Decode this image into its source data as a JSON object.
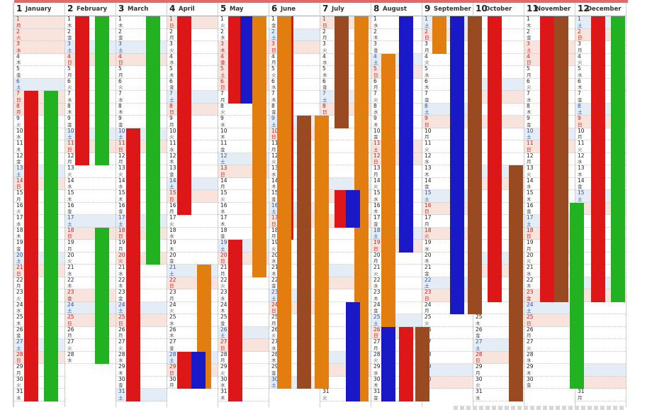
{
  "calendar": {
    "weekday_symbols": [
      "日",
      "月",
      "火",
      "水",
      "木",
      "金",
      "土"
    ],
    "colors": {
      "red": "#dd1717",
      "green": "#21b121",
      "blue": "#1919c8",
      "orange": "#e27d10",
      "brown": "#994a20"
    },
    "months": [
      {
        "num": "1",
        "name": "January",
        "days": 31,
        "start_weekday": 1,
        "holidays": [
          1,
          2,
          3,
          8
        ]
      },
      {
        "num": "2",
        "name": "February",
        "days": 28,
        "start_weekday": 4,
        "holidays": [
          11,
          23
        ]
      },
      {
        "num": "3",
        "name": "March",
        "days": 31,
        "start_weekday": 4,
        "holidays": [
          20
        ]
      },
      {
        "num": "4",
        "name": "April",
        "days": 30,
        "start_weekday": 0,
        "holidays": [
          29
        ]
      },
      {
        "num": "5",
        "name": "May",
        "days": 31,
        "start_weekday": 2,
        "holidays": [
          3,
          4,
          5
        ]
      },
      {
        "num": "6",
        "name": "June",
        "days": 30,
        "start_weekday": 5,
        "holidays": []
      },
      {
        "num": "7",
        "name": "July",
        "days": 31,
        "start_weekday": 0,
        "holidays": [
          17
        ]
      },
      {
        "num": "8",
        "name": "August",
        "days": 31,
        "start_weekday": 3,
        "holidays": [
          11
        ]
      },
      {
        "num": "9",
        "name": "September",
        "days": 30,
        "start_weekday": 6,
        "holidays": [
          18,
          23
        ]
      },
      {
        "num": "10",
        "name": "October",
        "days": 31,
        "start_weekday": 1,
        "holidays": [
          9
        ]
      },
      {
        "num": "11",
        "name": "November",
        "days": 30,
        "start_weekday": 4,
        "holidays": [
          3,
          23
        ]
      },
      {
        "num": "12",
        "name": "December",
        "days": 31,
        "start_weekday": 6,
        "holidays": []
      }
    ],
    "bars": [
      {
        "month": 1,
        "lane": 0,
        "start": 7,
        "end": 31,
        "color": "red"
      },
      {
        "month": 1,
        "lane": 1,
        "start": 7,
        "end": 31,
        "color": "green"
      },
      {
        "month": 2,
        "lane": 0,
        "start": 1,
        "end": 12,
        "color": "red"
      },
      {
        "month": 2,
        "lane": 1,
        "start": 1,
        "end": 12,
        "color": "green"
      },
      {
        "month": 2,
        "lane": 1,
        "start": 18,
        "end": 28,
        "color": "green"
      },
      {
        "month": 3,
        "lane": 0,
        "start": 10,
        "end": 31,
        "color": "red"
      },
      {
        "month": 3,
        "lane": 1,
        "start": 1,
        "end": 20,
        "color": "green"
      },
      {
        "month": 4,
        "lane": 0,
        "start": 1,
        "end": 16,
        "color": "red"
      },
      {
        "month": 4,
        "lane": 1,
        "start": 21,
        "end": 30,
        "color": "orange"
      },
      {
        "month": 4,
        "lane": 0,
        "start": 28,
        "end": 30,
        "color": "red"
      },
      {
        "month": 4,
        "lane": 0.7,
        "start": 28,
        "end": 30,
        "color": "blue"
      },
      {
        "month": 5,
        "lane": 0,
        "start": 1,
        "end": 7,
        "color": "red"
      },
      {
        "month": 5,
        "lane": 0.6,
        "start": 1,
        "end": 7,
        "color": "blue"
      },
      {
        "month": 5,
        "lane": 1.2,
        "start": 1,
        "end": 21,
        "color": "orange"
      },
      {
        "month": 5,
        "lane": 0,
        "start": 19,
        "end": 31,
        "color": "red"
      },
      {
        "month": 6,
        "lane": 0,
        "start": 1,
        "end": 18,
        "color": "red"
      },
      {
        "month": 6,
        "lane": 0.9,
        "start": 9,
        "end": 30,
        "color": "brown"
      },
      {
        "month": 6,
        "lane": 1.8,
        "start": 9,
        "end": 30,
        "color": "orange"
      },
      {
        "month": 6,
        "lane": -0.1,
        "start": 1,
        "end": 30,
        "color": "orange"
      },
      {
        "month": 7,
        "lane": 0.2,
        "start": 1,
        "end": 9,
        "color": "brown"
      },
      {
        "month": 7,
        "lane": 1.2,
        "start": 1,
        "end": 31,
        "color": "orange"
      },
      {
        "month": 7,
        "lane": 0.2,
        "start": 15,
        "end": 17,
        "color": "red"
      },
      {
        "month": 7,
        "lane": 0.8,
        "start": 15,
        "end": 17,
        "color": "blue"
      },
      {
        "month": 7,
        "lane": 0.8,
        "start": 24,
        "end": 31,
        "color": "blue"
      },
      {
        "month": 8,
        "lane": 0,
        "start": 4,
        "end": 31,
        "color": "orange"
      },
      {
        "month": 8,
        "lane": 0.9,
        "start": 1,
        "end": 19,
        "color": "blue"
      },
      {
        "month": 8,
        "lane": 0.9,
        "start": 26,
        "end": 31,
        "color": "red"
      },
      {
        "month": 8,
        "lane": 1.7,
        "start": 26,
        "end": 31,
        "color": "brown"
      },
      {
        "month": 8,
        "lane": 0,
        "start": 26,
        "end": 31,
        "color": "blue"
      },
      {
        "month": 9,
        "lane": 0,
        "start": 1,
        "end": 3,
        "color": "orange"
      },
      {
        "month": 9,
        "lane": 0.9,
        "start": 1,
        "end": 24,
        "color": "blue"
      },
      {
        "month": 9,
        "lane": 1.8,
        "start": 1,
        "end": 24,
        "color": "brown"
      },
      {
        "month": 10,
        "lane": 0.2,
        "start": 1,
        "end": 23,
        "color": "red"
      },
      {
        "month": 10,
        "lane": 1.3,
        "start": 13,
        "end": 31,
        "color": "brown"
      },
      {
        "month": 11,
        "lane": 0.3,
        "start": 1,
        "end": 23,
        "color": "red"
      },
      {
        "month": 11,
        "lane": 1.0,
        "start": 1,
        "end": 23,
        "color": "brown"
      },
      {
        "month": 11,
        "lane": 1.8,
        "start": 16,
        "end": 30,
        "color": "green"
      },
      {
        "month": 12,
        "lane": 0.3,
        "start": 1,
        "end": 23,
        "color": "red"
      },
      {
        "month": 12,
        "lane": 1.3,
        "start": 1,
        "end": 23,
        "color": "green"
      }
    ]
  }
}
